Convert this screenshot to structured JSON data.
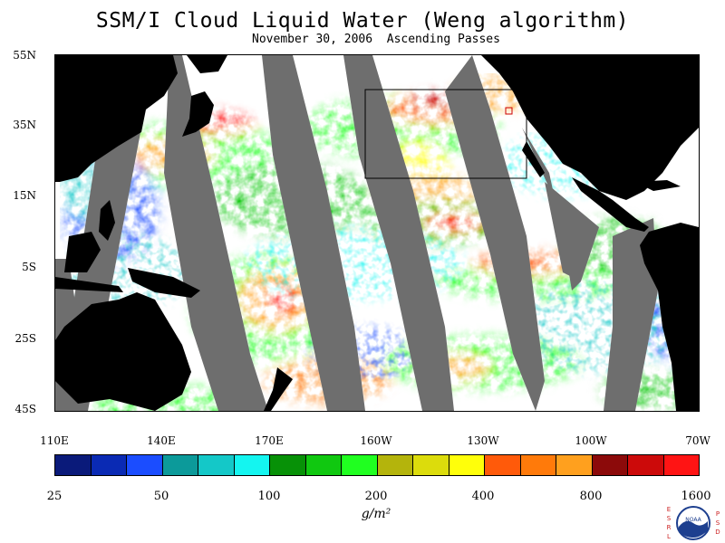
{
  "title": "SSM/I Cloud Liquid Water (Weng algorithm)",
  "subtitle": "November 30, 2006  Ascending Passes",
  "latitude_labels": [
    "55N",
    "35N",
    "15N",
    "5S",
    "25S",
    "45S"
  ],
  "longitude_labels": [
    "110E",
    "140E",
    "170E",
    "160W",
    "130W",
    "100W",
    "70W"
  ],
  "colorbar": {
    "colors": [
      "#0a1a7a",
      "#0a2ab4",
      "#1b4dff",
      "#0c9a9a",
      "#14c8c8",
      "#14f5f0",
      "#079107",
      "#10c810",
      "#20ff20",
      "#b4b40c",
      "#dcdc0c",
      "#ffff0a",
      "#ff5a0a",
      "#ff7a0a",
      "#ffa01e",
      "#8c0a0a",
      "#cc0a0a",
      "#ff1414"
    ],
    "tick_labels": [
      "25",
      "50",
      "100",
      "200",
      "400",
      "800",
      "1600"
    ],
    "units": "g/m²"
  },
  "colors": {
    "land": "#000000",
    "no_data": "#6e6e6e",
    "clear_sky": "#ffffff",
    "highlight_box": "#000000",
    "marker": "#cc0000"
  },
  "logo": {
    "left_text": "ESRL",
    "right_text": "PSD",
    "center_text": "NOAA"
  }
}
